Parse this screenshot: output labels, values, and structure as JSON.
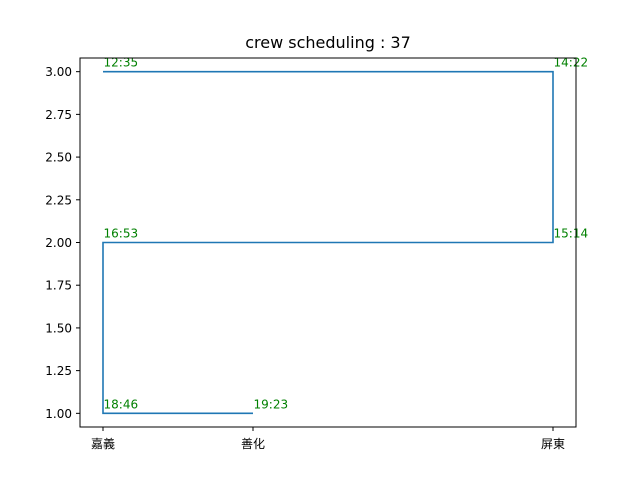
{
  "chart_data": {
    "type": "line",
    "title": "crew scheduling : 37",
    "xlabel": "",
    "ylabel": "",
    "ylim": [
      0.92,
      3.08
    ],
    "yticks": [
      "1.00",
      "1.25",
      "1.50",
      "1.75",
      "2.00",
      "2.25",
      "2.50",
      "2.75",
      "3.00"
    ],
    "xcategories": [
      "嘉義",
      "善化",
      "屏東"
    ],
    "grid": false,
    "series": [
      {
        "color": "#1f77b4",
        "points": [
          {
            "x": "嘉義",
            "y": 3,
            "label": "12:35"
          },
          {
            "x": "屏東",
            "y": 3,
            "label": "14:22"
          },
          {
            "x": "屏東",
            "y": 2,
            "label": "15:14"
          },
          {
            "x": "嘉義",
            "y": 2,
            "label": "16:53"
          },
          {
            "x": "嘉義",
            "y": 1,
            "label": "18:46"
          },
          {
            "x": "善化",
            "y": 1,
            "label": "19:23"
          }
        ]
      }
    ],
    "annotation_color": "#008000"
  }
}
